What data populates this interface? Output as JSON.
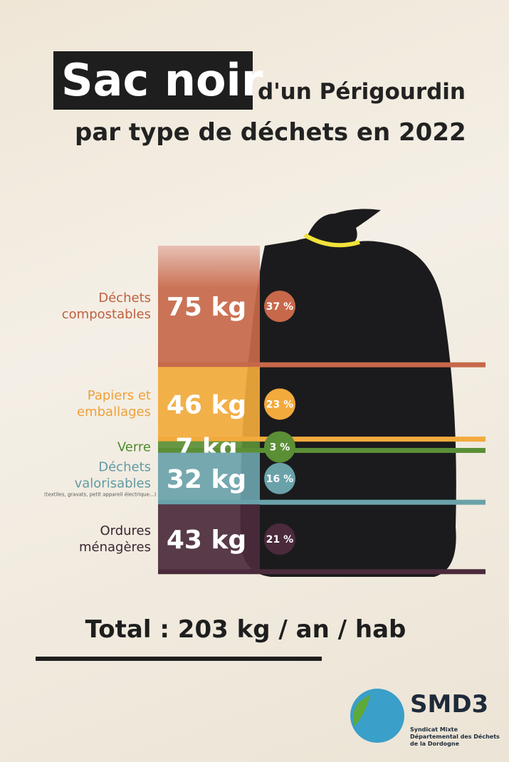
{
  "chart_data": {
    "type": "stacked-band",
    "title_highlight": "Sac noir",
    "title_rest": "d'un Périgourdin",
    "subtitle": "par type de déchets en 2022",
    "categories": [
      "Déchets compostables",
      "Papiers et emballages",
      "Verre",
      "Déchets valorisables",
      "Ordures ménagères"
    ],
    "category_notes": [
      null,
      null,
      null,
      "(textiles, gravats, petit appareil électrique...)",
      null
    ],
    "values": [
      75,
      46,
      7,
      32,
      43
    ],
    "value_labels": [
      "75 kg",
      "46 kg",
      "7 kg",
      "32 kg",
      "43 kg"
    ],
    "shares": [
      37,
      23,
      3,
      16,
      21
    ],
    "share_labels": [
      "37 %",
      "23 %",
      "3 %",
      "16 %",
      "21 %"
    ],
    "colors": [
      "#c7684a",
      "#f2aa3c",
      "#5b8f36",
      "#6aa2aa",
      "#4b2a3c"
    ],
    "label_colors": [
      "#c0603f",
      "#eea03a",
      "#4f8a2e",
      "#5f9aa3",
      "#3a2530"
    ],
    "total": 203,
    "total_label": "Total : 203 kg / an / hab",
    "logo": {
      "name": "SMD3",
      "caption": "Syndicat Mixte Départemental des Déchets de la Dordogne"
    }
  }
}
